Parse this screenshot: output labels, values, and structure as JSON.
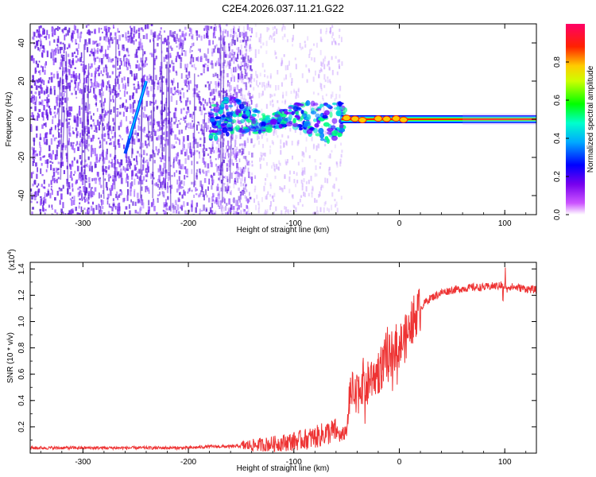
{
  "title": "C2E4.2026.037.11.21.G22",
  "chart_data": [
    {
      "type": "heatmap",
      "description_key": "spectrogram",
      "xlabel": "Height of straight line (km)",
      "ylabel": "Frequency (Hz)",
      "xlim": [
        -350,
        130
      ],
      "ylim": [
        -50,
        50
      ],
      "xticks": [
        -300,
        -200,
        -100,
        0,
        100
      ],
      "yticks": [
        -40,
        -20,
        0,
        20,
        40
      ],
      "colorbar": {
        "label": "Normalized spectral amplitude",
        "range": [
          0.0,
          1.0
        ],
        "ticks": [
          0.0,
          0.2,
          0.4,
          0.6,
          0.8
        ],
        "tick_labels": [
          "0.0",
          "0.2",
          "0.4",
          "0.6",
          "0.8"
        ],
        "colors": [
          "#ff00ff",
          "#0000ff",
          "#00ffff",
          "#00ff00",
          "#ffff00",
          "#ff0000",
          "#ff0066"
        ]
      },
      "features": {
        "noise_region_km": [
          -350,
          -140
        ],
        "scattered_region_km": [
          -140,
          -60
        ],
        "carrier_start_km": -55,
        "carrier_frequency_hz": 0,
        "diagonal_track": {
          "from": [
            -260,
            -18
          ],
          "to": [
            -240,
            20
          ]
        }
      }
    },
    {
      "type": "line",
      "xlabel": "Height of straight line (km)",
      "ylabel": "SNR (10 * v/v)",
      "y_scale_label": "(x10",
      "y_scale_exp": "4",
      "y_scale_close": ")",
      "xlim": [
        -350,
        130
      ],
      "ylim": [
        0,
        1.45
      ],
      "xticks": [
        -300,
        -200,
        -100,
        0,
        100
      ],
      "yticks": [
        0.2,
        0.4,
        0.6,
        0.8,
        1.0,
        1.2,
        1.4
      ],
      "ytick_labels": [
        "0.2",
        "0.4",
        "0.6",
        "0.8",
        "1.0",
        "1.2",
        "1.4"
      ],
      "color": "#ee3333",
      "series": [
        {
          "name": "SNR",
          "x": [
            -350,
            -300,
            -250,
            -200,
            -180,
            -160,
            -140,
            -120,
            -100,
            -80,
            -70,
            -60,
            -55,
            -50,
            -47,
            -45,
            -42,
            -40,
            -35,
            -30,
            -25,
            -20,
            -15,
            -10,
            -5,
            0,
            5,
            10,
            15,
            20,
            25,
            30,
            40,
            50,
            60,
            70,
            80,
            90,
            100,
            110,
            120,
            130
          ],
          "y": [
            0.04,
            0.04,
            0.04,
            0.04,
            0.05,
            0.05,
            0.06,
            0.07,
            0.09,
            0.12,
            0.15,
            0.17,
            0.12,
            0.18,
            0.35,
            0.45,
            0.4,
            0.45,
            0.55,
            0.52,
            0.6,
            0.62,
            0.68,
            0.72,
            0.8,
            0.82,
            0.86,
            0.95,
            1.05,
            1.1,
            1.15,
            1.18,
            1.22,
            1.24,
            1.25,
            1.26,
            1.26,
            1.27,
            1.27,
            1.26,
            1.25,
            1.24
          ]
        }
      ]
    }
  ]
}
